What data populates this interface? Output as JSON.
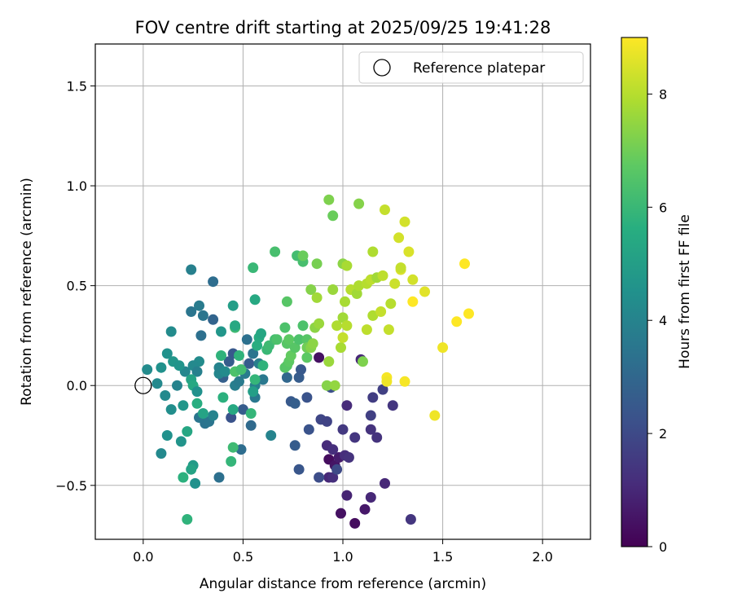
{
  "chart_data": {
    "type": "scatter",
    "title": "FOV centre drift starting at 2025/09/25 19:41:28",
    "xlabel": "Angular distance from reference (arcmin)",
    "ylabel": "Rotation from reference (arcmin)",
    "xlim": [
      -0.24,
      2.24
    ],
    "ylim": [
      -0.77,
      1.71
    ],
    "xticks": [
      0.0,
      0.5,
      1.0,
      1.5,
      2.0
    ],
    "xtick_labels": [
      "0.0",
      "0.5",
      "1.0",
      "1.5",
      "2.0"
    ],
    "yticks": [
      -0.5,
      0.0,
      0.5,
      1.0,
      1.5
    ],
    "ytick_labels": [
      "−0.5",
      "0.0",
      "0.5",
      "1.0",
      "1.5"
    ],
    "grid": true,
    "legend": {
      "location": "upper right",
      "entries": [
        "Reference platepar"
      ]
    },
    "reference_point": {
      "x": 0.0,
      "y": 0.0,
      "label": "Reference platepar"
    },
    "colorbar": {
      "label": "Hours from first FF file",
      "colormap": "viridis",
      "range": [
        0,
        9
      ],
      "ticks": [
        0,
        2,
        4,
        6,
        8
      ],
      "tick_labels": [
        "0",
        "2",
        "4",
        "6",
        "8"
      ]
    },
    "points": [
      [
        1.06,
        -0.69,
        0.3
      ],
      [
        0.99,
        -0.64,
        0.4
      ],
      [
        1.11,
        -0.62,
        0.6
      ],
      [
        1.02,
        -0.55,
        0.9
      ],
      [
        1.14,
        -0.56,
        1.0
      ],
      [
        0.93,
        -0.37,
        0.3
      ],
      [
        0.96,
        -0.4,
        0.5
      ],
      [
        0.98,
        -0.36,
        0.7
      ],
      [
        1.01,
        -0.35,
        1.2
      ],
      [
        1.03,
        -0.36,
        1.3
      ],
      [
        0.92,
        -0.3,
        1.1
      ],
      [
        0.95,
        -0.32,
        1.2
      ],
      [
        0.93,
        -0.46,
        1.0
      ],
      [
        0.95,
        -0.46,
        1.2
      ],
      [
        1.21,
        -0.49,
        1.0
      ],
      [
        1.34,
        -0.67,
        1.4
      ],
      [
        1.0,
        -0.22,
        1.5
      ],
      [
        1.06,
        -0.26,
        1.4
      ],
      [
        1.14,
        -0.22,
        1.3
      ],
      [
        1.17,
        -0.26,
        1.3
      ],
      [
        1.02,
        -0.1,
        1.1
      ],
      [
        1.15,
        -0.06,
        1.6
      ],
      [
        1.25,
        -0.1,
        1.4
      ],
      [
        1.14,
        -0.15,
        1.7
      ],
      [
        1.2,
        -0.02,
        1.7
      ],
      [
        0.89,
        -0.17,
        1.9
      ],
      [
        0.92,
        -0.18,
        1.8
      ],
      [
        0.97,
        -0.42,
        2.0
      ],
      [
        0.88,
        -0.46,
        2.1
      ],
      [
        0.83,
        -0.22,
        2.3
      ],
      [
        0.78,
        -0.42,
        2.4
      ],
      [
        0.76,
        -0.3,
        2.6
      ],
      [
        0.74,
        -0.08,
        2.5
      ],
      [
        0.76,
        -0.09,
        2.7
      ],
      [
        0.78,
        0.04,
        2.6
      ],
      [
        0.79,
        0.08,
        2.5
      ],
      [
        0.82,
        -0.06,
        2.3
      ],
      [
        0.94,
        -0.01,
        2.2
      ],
      [
        0.88,
        0.14,
        0.4
      ],
      [
        1.09,
        0.13,
        1.0
      ],
      [
        0.72,
        0.04,
        3.0
      ],
      [
        0.53,
        0.11,
        2.6
      ],
      [
        0.45,
        0.16,
        2.5
      ],
      [
        0.43,
        0.12,
        2.6
      ],
      [
        0.4,
        0.04,
        2.7
      ],
      [
        0.44,
        -0.16,
        2.3
      ],
      [
        0.5,
        -0.12,
        2.6
      ],
      [
        0.54,
        -0.2,
        3.1
      ],
      [
        0.49,
        -0.32,
        3.2
      ],
      [
        0.38,
        -0.46,
        3.3
      ],
      [
        0.31,
        -0.19,
        3.4
      ],
      [
        0.28,
        -0.16,
        3.5
      ],
      [
        0.33,
        -0.18,
        3.5
      ],
      [
        0.35,
        -0.15,
        4.0
      ],
      [
        0.46,
        0.0,
        3.8
      ],
      [
        0.48,
        0.02,
        3.7
      ],
      [
        0.51,
        0.06,
        3.7
      ],
      [
        0.56,
        0.0,
        3.9
      ],
      [
        0.56,
        -0.06,
        3.6
      ],
      [
        0.6,
        0.03,
        3.6
      ],
      [
        0.55,
        0.16,
        3.5
      ],
      [
        0.52,
        0.23,
        3.3
      ],
      [
        0.58,
        0.11,
        3.8
      ],
      [
        0.64,
        -0.25,
        4.0
      ],
      [
        0.3,
        0.35,
        3.5
      ],
      [
        0.29,
        0.25,
        3.3
      ],
      [
        0.35,
        0.33,
        2.9
      ],
      [
        0.35,
        0.52,
        3.2
      ],
      [
        0.24,
        0.37,
        3.5
      ],
      [
        0.28,
        0.4,
        3.7
      ],
      [
        0.24,
        0.58,
        3.9
      ],
      [
        0.39,
        0.27,
        4.7
      ],
      [
        0.38,
        0.06,
        4.1
      ],
      [
        0.38,
        0.09,
        4.0
      ],
      [
        0.41,
        0.07,
        4.3
      ],
      [
        0.28,
        0.12,
        4.3
      ],
      [
        0.25,
        0.1,
        4.2
      ],
      [
        0.27,
        0.07,
        3.9
      ],
      [
        0.21,
        0.07,
        4.1
      ],
      [
        0.17,
        0.0,
        4.0
      ],
      [
        0.14,
        -0.12,
        4.4
      ],
      [
        0.11,
        -0.05,
        4.2
      ],
      [
        0.07,
        0.01,
        4.2
      ],
      [
        0.02,
        0.08,
        4.3
      ],
      [
        0.09,
        0.09,
        4.5
      ],
      [
        0.12,
        0.16,
        4.5
      ],
      [
        0.15,
        0.12,
        4.7
      ],
      [
        0.18,
        0.1,
        4.6
      ],
      [
        0.14,
        0.27,
        4.3
      ],
      [
        0.12,
        -0.25,
        4.5
      ],
      [
        0.09,
        -0.34,
        4.2
      ],
      [
        0.19,
        -0.28,
        4.6
      ],
      [
        0.25,
        -0.4,
        4.9
      ],
      [
        0.26,
        -0.49,
        4.5
      ],
      [
        0.2,
        -0.46,
        5.7
      ],
      [
        0.22,
        -0.67,
        5.8
      ],
      [
        0.2,
        -0.1,
        4.7
      ],
      [
        0.22,
        -0.23,
        5.3
      ],
      [
        0.24,
        -0.42,
        5.2
      ],
      [
        0.24,
        0.03,
        5.2
      ],
      [
        0.25,
        0.0,
        5.4
      ],
      [
        0.27,
        -0.03,
        4.5
      ],
      [
        0.3,
        -0.14,
        5.2
      ],
      [
        0.27,
        -0.09,
        5.6
      ],
      [
        0.39,
        0.15,
        5.8
      ],
      [
        0.4,
        -0.06,
        5.7
      ],
      [
        0.45,
        -0.12,
        5.4
      ],
      [
        0.44,
        -0.38,
        5.9
      ],
      [
        0.45,
        -0.31,
        6.1
      ],
      [
        0.46,
        0.07,
        6.4
      ],
      [
        0.48,
        0.15,
        5.8
      ],
      [
        0.49,
        0.08,
        6.2
      ],
      [
        0.46,
        0.29,
        6.1
      ],
      [
        0.46,
        0.3,
        5.4
      ],
      [
        0.45,
        0.4,
        5.0
      ],
      [
        0.54,
        -0.14,
        5.9
      ],
      [
        0.55,
        -0.03,
        5.0
      ],
      [
        0.56,
        0.03,
        5.9
      ],
      [
        0.57,
        0.2,
        5.6
      ],
      [
        0.58,
        0.24,
        5.5
      ],
      [
        0.59,
        0.26,
        5.3
      ],
      [
        0.56,
        0.43,
        5.4
      ],
      [
        0.55,
        0.59,
        6.0
      ],
      [
        0.6,
        0.1,
        5.8
      ],
      [
        0.62,
        0.18,
        6.0
      ],
      [
        0.63,
        0.2,
        6.1
      ],
      [
        0.66,
        0.23,
        6.2
      ],
      [
        0.66,
        0.67,
        6.3
      ],
      [
        0.67,
        0.23,
        6.4
      ],
      [
        0.71,
        0.29,
        6.4
      ],
      [
        0.72,
        0.21,
        6.6
      ],
      [
        0.72,
        0.42,
        6.6
      ],
      [
        0.73,
        0.23,
        6.7
      ],
      [
        0.71,
        0.09,
        6.6
      ],
      [
        0.72,
        0.1,
        6.6
      ],
      [
        0.73,
        0.12,
        6.7
      ],
      [
        0.74,
        0.15,
        6.8
      ],
      [
        0.76,
        0.19,
        6.6
      ],
      [
        0.77,
        0.65,
        6.2
      ],
      [
        0.78,
        0.23,
        6.4
      ],
      [
        0.8,
        0.3,
        6.4
      ],
      [
        0.8,
        0.62,
        6.3
      ],
      [
        0.8,
        0.65,
        6.9
      ],
      [
        0.82,
        0.23,
        6.6
      ],
      [
        0.82,
        0.14,
        6.7
      ],
      [
        0.82,
        0.19,
        7.0
      ],
      [
        0.84,
        0.19,
        7.3
      ],
      [
        0.85,
        0.21,
        7.4
      ],
      [
        0.84,
        0.48,
        7.3
      ],
      [
        0.87,
        0.44,
        7.7
      ],
      [
        0.87,
        0.61,
        7.1
      ],
      [
        0.86,
        0.29,
        7.4
      ],
      [
        0.88,
        0.31,
        7.6
      ],
      [
        0.92,
        0.0,
        7.3
      ],
      [
        0.96,
        0.0,
        7.5
      ],
      [
        0.93,
        0.12,
        7.6
      ],
      [
        0.93,
        0.93,
        7.2
      ],
      [
        0.95,
        0.85,
        6.9
      ],
      [
        0.95,
        0.48,
        7.6
      ],
      [
        0.97,
        0.3,
        7.9
      ],
      [
        0.99,
        0.19,
        7.8
      ],
      [
        1.0,
        0.24,
        8.2
      ],
      [
        1.0,
        0.34,
        7.7
      ],
      [
        1.01,
        0.42,
        7.8
      ],
      [
        1.0,
        0.61,
        7.4
      ],
      [
        1.02,
        0.6,
        7.8
      ],
      [
        1.02,
        0.3,
        8.0
      ],
      [
        1.04,
        0.48,
        8.0
      ],
      [
        1.07,
        0.46,
        7.7
      ],
      [
        1.08,
        0.5,
        7.9
      ],
      [
        1.08,
        0.91,
        7.3
      ],
      [
        1.1,
        0.12,
        7.2
      ],
      [
        1.12,
        0.28,
        8.1
      ],
      [
        1.12,
        0.51,
        8.0
      ],
      [
        1.14,
        0.53,
        8.1
      ],
      [
        1.15,
        0.35,
        7.9
      ],
      [
        1.15,
        0.67,
        7.9
      ],
      [
        1.17,
        0.54,
        7.7
      ],
      [
        1.19,
        0.37,
        8.2
      ],
      [
        1.2,
        0.55,
        8.1
      ],
      [
        1.21,
        0.88,
        8.2
      ],
      [
        1.22,
        0.04,
        8.9
      ],
      [
        1.22,
        0.02,
        8.8
      ],
      [
        1.23,
        0.28,
        8.2
      ],
      [
        1.24,
        0.41,
        8.0
      ],
      [
        1.26,
        0.51,
        8.3
      ],
      [
        1.28,
        0.74,
        8.4
      ],
      [
        1.29,
        0.58,
        8.5
      ],
      [
        1.29,
        0.59,
        8.2
      ],
      [
        1.31,
        0.82,
        8.4
      ],
      [
        1.31,
        0.02,
        8.9
      ],
      [
        1.33,
        0.67,
        8.5
      ],
      [
        1.35,
        0.53,
        8.4
      ],
      [
        1.35,
        0.42,
        9.0
      ],
      [
        1.41,
        0.47,
        8.6
      ],
      [
        1.46,
        -0.15,
        8.8
      ],
      [
        1.5,
        0.19,
        8.8
      ],
      [
        1.57,
        0.32,
        9.0
      ],
      [
        1.61,
        0.61,
        9.0
      ],
      [
        1.63,
        0.36,
        9.0
      ]
    ]
  }
}
